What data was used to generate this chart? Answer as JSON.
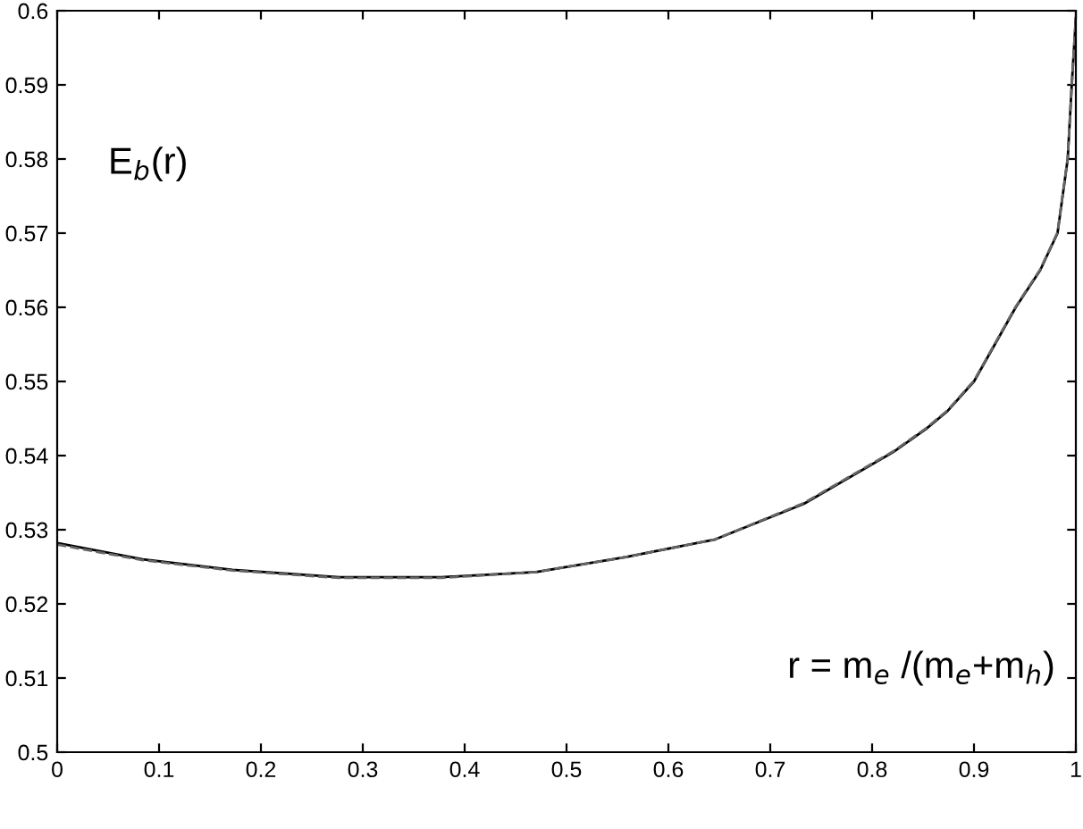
{
  "chart_data": {
    "type": "line",
    "x": [
      0,
      0.084,
      0.172,
      0.277,
      0.377,
      0.47,
      0.558,
      0.646,
      0.733,
      0.821,
      0.853,
      0.874,
      0.9,
      0.941,
      0.965,
      0.982,
      0.992,
      0.996,
      1.0
    ],
    "series": [
      {
        "color": "#000000",
        "line_style": "solid",
        "values": [
          0.5282,
          0.526,
          0.5246,
          0.5236,
          0.5236,
          0.5243,
          0.5263,
          0.5287,
          0.5335,
          0.5405,
          0.5436,
          0.546,
          0.55,
          0.56,
          0.565,
          0.57,
          0.58,
          0.59,
          0.599
        ]
      },
      {
        "color": "#666666",
        "line_style": "dashed",
        "values": [
          0.528,
          0.5259,
          0.5245,
          0.5235,
          0.5235,
          0.5243,
          0.5263,
          0.5287,
          0.5336,
          0.5406,
          0.5437,
          0.5461,
          0.5501,
          0.5601,
          0.5651,
          0.5701,
          0.5801,
          0.5901,
          0.599
        ]
      }
    ],
    "xlim": [
      0,
      1
    ],
    "ylim": [
      0.5,
      0.6
    ],
    "xticks": [
      0,
      0.1,
      0.2,
      0.3,
      0.4,
      0.5,
      0.6,
      0.7,
      0.8,
      0.9,
      1
    ],
    "yticks": [
      0.5,
      0.51,
      0.52,
      0.53,
      0.54,
      0.55,
      0.56,
      0.57,
      0.58,
      0.59,
      0.6
    ],
    "annotations": [
      "E$_{b}$(r)",
      "r = m$_{e}$ /(m$_{e}$+m$_{h}$)"
    ],
    "grid": false,
    "legend": false
  }
}
